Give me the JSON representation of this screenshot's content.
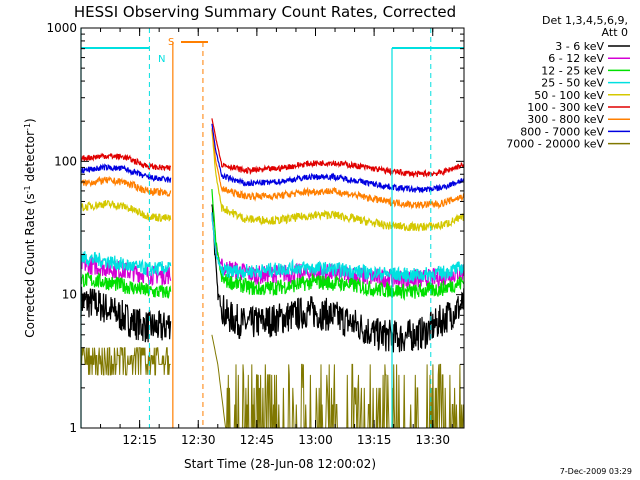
{
  "chart_data": {
    "type": "line",
    "title": "HESSI Observing Summary Count Rates, Corrected",
    "xlabel": "Start Time (28-Jun-08 12:00:02)",
    "ylabel_parts": [
      "Corrected Count Rate (s",
      "-1",
      " detector",
      "-1",
      ")"
    ],
    "yscale": "log",
    "ylim": [
      1,
      1000
    ],
    "xlim_minutes": [
      0,
      98
    ],
    "x_ticks": [
      {
        "label": "12:15",
        "value": 15
      },
      {
        "label": "12:30",
        "value": 30
      },
      {
        "label": "12:45",
        "value": 45
      },
      {
        "label": "13:00",
        "value": 60
      },
      {
        "label": "13:15",
        "value": 75
      },
      {
        "label": "13:30",
        "value": 90
      }
    ],
    "y_ticks": [
      {
        "label": "1",
        "value": 1
      },
      {
        "label": "10",
        "value": 10
      },
      {
        "label": "100",
        "value": 100
      },
      {
        "label": "1000",
        "value": 1000
      }
    ],
    "legend_header": [
      "Det 1,3,4,5,6,9,",
      "Att 0"
    ],
    "legend_position": "top-right, outside plot",
    "data_gap_minutes": [
      23.5,
      33.5
    ],
    "series": [
      {
        "name": "3 - 6 keV",
        "color": "#000000",
        "left": [
          [
            0,
            9
          ],
          [
            4,
            8.5
          ],
          [
            8,
            7.5
          ],
          [
            12,
            6.5
          ],
          [
            16,
            5.8
          ],
          [
            21,
            5.6
          ],
          [
            23,
            6.2
          ]
        ],
        "right": [
          [
            33.5,
            50
          ],
          [
            34.2,
            22
          ],
          [
            35,
            10
          ],
          [
            37,
            7
          ],
          [
            42,
            6
          ],
          [
            50,
            6.5
          ],
          [
            58,
            7.5
          ],
          [
            64,
            7
          ],
          [
            70,
            6
          ],
          [
            76,
            5
          ],
          [
            82,
            4.8
          ],
          [
            88,
            5.2
          ],
          [
            94,
            7
          ],
          [
            98,
            8.5
          ]
        ]
      },
      {
        "name": "6 - 12 keV",
        "color": "#d400d4",
        "left": [
          [
            0,
            17
          ],
          [
            6,
            16
          ],
          [
            12,
            15
          ],
          [
            18,
            14
          ],
          [
            23,
            14
          ]
        ],
        "right": [
          [
            33.5,
            40
          ],
          [
            34.5,
            22
          ],
          [
            36,
            16
          ],
          [
            45,
            14
          ],
          [
            55,
            14.5
          ],
          [
            65,
            14.5
          ],
          [
            75,
            13.5
          ],
          [
            85,
            13
          ],
          [
            92,
            13.5
          ],
          [
            98,
            15
          ]
        ]
      },
      {
        "name": "12 - 25 keV",
        "color": "#00e000",
        "left": [
          [
            0,
            13
          ],
          [
            6,
            12.5
          ],
          [
            12,
            11.5
          ],
          [
            18,
            10.5
          ],
          [
            23,
            10.5
          ]
        ],
        "right": [
          [
            33.5,
            60
          ],
          [
            34.5,
            25
          ],
          [
            36,
            13
          ],
          [
            45,
            11
          ],
          [
            52,
            11.5
          ],
          [
            60,
            12.5
          ],
          [
            68,
            12
          ],
          [
            75,
            11
          ],
          [
            85,
            10.5
          ],
          [
            92,
            11
          ],
          [
            98,
            12.5
          ]
        ]
      },
      {
        "name": "25 - 50 keV",
        "color": "#00e0e0",
        "left": [
          [
            0,
            19
          ],
          [
            6,
            18
          ],
          [
            12,
            16.5
          ],
          [
            18,
            15.5
          ],
          [
            23,
            16
          ]
        ],
        "right": [
          [
            33.5,
            40
          ],
          [
            34.5,
            20
          ],
          [
            36,
            15
          ],
          [
            45,
            15
          ],
          [
            55,
            16
          ],
          [
            65,
            15.5
          ],
          [
            75,
            14.5
          ],
          [
            85,
            14
          ],
          [
            92,
            14.5
          ],
          [
            98,
            16
          ]
        ]
      },
      {
        "name": "50 - 100 keV",
        "color": "#d4c800",
        "left": [
          [
            0,
            45
          ],
          [
            6,
            48
          ],
          [
            11,
            46
          ],
          [
            17,
            39
          ],
          [
            23,
            37
          ]
        ],
        "right": [
          [
            33.5,
            170
          ],
          [
            34.5,
            80
          ],
          [
            36,
            45
          ],
          [
            42,
            37
          ],
          [
            50,
            36
          ],
          [
            58,
            39
          ],
          [
            64,
            40
          ],
          [
            70,
            37
          ],
          [
            78,
            33
          ],
          [
            86,
            32
          ],
          [
            92,
            33
          ],
          [
            98,
            38
          ]
        ]
      },
      {
        "name": "100 - 300 keV",
        "color": "#e00000",
        "left": [
          [
            0,
            105
          ],
          [
            6,
            110
          ],
          [
            11,
            108
          ],
          [
            17,
            92
          ],
          [
            23,
            88
          ]
        ],
        "right": [
          [
            33.5,
            210
          ],
          [
            34.5,
            150
          ],
          [
            36,
            95
          ],
          [
            42,
            85
          ],
          [
            50,
            88
          ],
          [
            58,
            96
          ],
          [
            64,
            98
          ],
          [
            70,
            93
          ],
          [
            78,
            85
          ],
          [
            86,
            80
          ],
          [
            92,
            82
          ],
          [
            98,
            95
          ]
        ]
      },
      {
        "name": "300 - 800 keV",
        "color": "#ff7f00",
        "left": [
          [
            0,
            68
          ],
          [
            6,
            72
          ],
          [
            11,
            70
          ],
          [
            17,
            60
          ],
          [
            23,
            57
          ]
        ],
        "right": [
          [
            33.5,
            180
          ],
          [
            34.5,
            100
          ],
          [
            36,
            62
          ],
          [
            42,
            55
          ],
          [
            50,
            55
          ],
          [
            58,
            59
          ],
          [
            64,
            60
          ],
          [
            70,
            56
          ],
          [
            78,
            50
          ],
          [
            86,
            47
          ],
          [
            92,
            48
          ],
          [
            98,
            55
          ]
        ]
      },
      {
        "name": "800 - 7000 keV",
        "color": "#0000e0",
        "left": [
          [
            0,
            85
          ],
          [
            6,
            90
          ],
          [
            11,
            88
          ],
          [
            17,
            76
          ],
          [
            23,
            72
          ]
        ],
        "right": [
          [
            33.5,
            190
          ],
          [
            34.5,
            120
          ],
          [
            36,
            78
          ],
          [
            42,
            68
          ],
          [
            50,
            70
          ],
          [
            58,
            76
          ],
          [
            64,
            77
          ],
          [
            70,
            72
          ],
          [
            78,
            65
          ],
          [
            86,
            61
          ],
          [
            92,
            63
          ],
          [
            98,
            73
          ]
        ]
      },
      {
        "name": "7000 - 20000 keV",
        "color": "#807800",
        "left": [
          [
            0,
            3.5
          ],
          [
            23,
            3.5
          ]
        ],
        "right": [
          [
            33.5,
            5
          ],
          [
            35,
            3
          ],
          [
            37,
            1
          ],
          [
            98,
            1
          ]
        ]
      }
    ],
    "annotations": [
      {
        "text": "N",
        "color": "#00e0e0"
      },
      {
        "text": "S",
        "color": "#ff7f00"
      }
    ],
    "attenuator_lines_min": [
      17.5,
      89.5
    ],
    "saa_lines_min": [
      24.5,
      31.2
    ]
  },
  "footer_date": "7-Dec-2009 03:29"
}
